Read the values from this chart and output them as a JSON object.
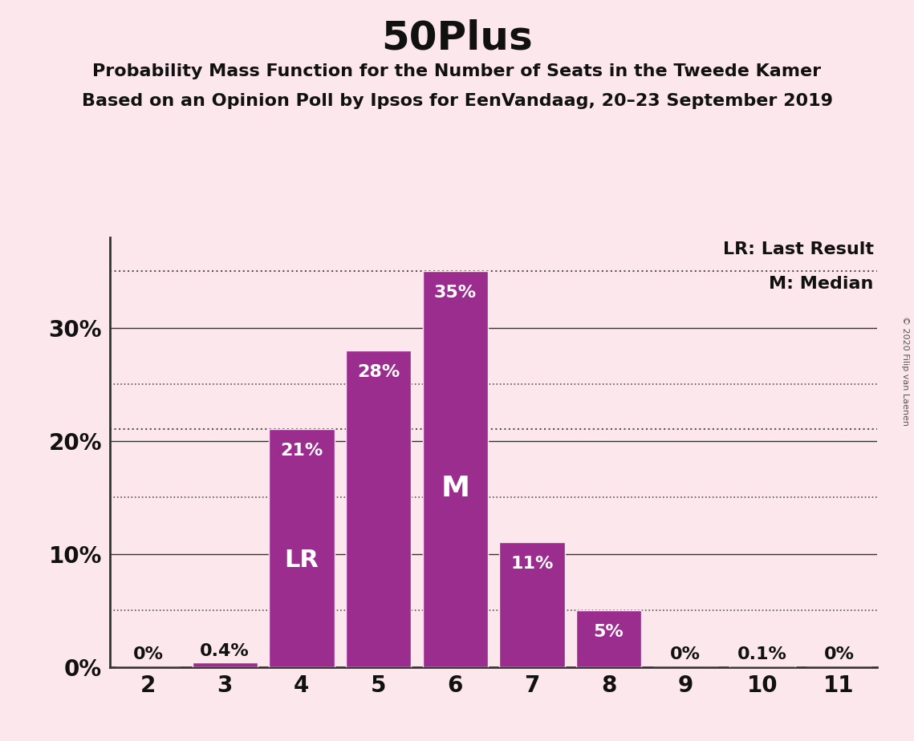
{
  "title": "50Plus",
  "subtitle1": "Probability Mass Function for the Number of Seats in the Tweede Kamer",
  "subtitle2": "Based on an Opinion Poll by Ipsos for EenVandaag, 20–23 September 2019",
  "copyright": "© 2020 Filip van Laenen",
  "seats": [
    2,
    3,
    4,
    5,
    6,
    7,
    8,
    9,
    10,
    11
  ],
  "probabilities": [
    0.0,
    0.4,
    21.0,
    28.0,
    35.0,
    11.0,
    5.0,
    0.0,
    0.1,
    0.0
  ],
  "bar_labels": [
    "0%",
    "0.4%",
    "21%",
    "28%",
    "35%",
    "11%",
    "5%",
    "0%",
    "0.1%",
    "0%"
  ],
  "bar_color": "#9b2d8e",
  "background_color": "#fce8ec",
  "last_result_seat": 4,
  "median_seat": 6,
  "lr_label": "LR",
  "m_label": "M",
  "legend_lr": "LR: Last Result",
  "legend_m": "M: Median",
  "ylim": [
    0,
    38
  ],
  "solid_gridlines": [
    10,
    20,
    30
  ],
  "dotted_gridlines": [
    5,
    15,
    25
  ],
  "ytick_positions": [
    0,
    10,
    20,
    30
  ],
  "ytick_labels": [
    "0%",
    "10%",
    "20%",
    "30%"
  ],
  "special_dotted_lines": [
    21.0,
    35.0
  ],
  "dotted_line_color": "#555555",
  "solid_line_color": "#333333",
  "bar_label_color_inside": "#ffffff",
  "bar_label_color_outside": "#111111",
  "title_fontsize": 36,
  "subtitle_fontsize": 16,
  "bar_label_fontsize": 16,
  "axis_fontsize": 20,
  "legend_fontsize": 16,
  "inside_label_threshold": 4.0,
  "lr_fontsize": 22,
  "m_fontsize": 26
}
